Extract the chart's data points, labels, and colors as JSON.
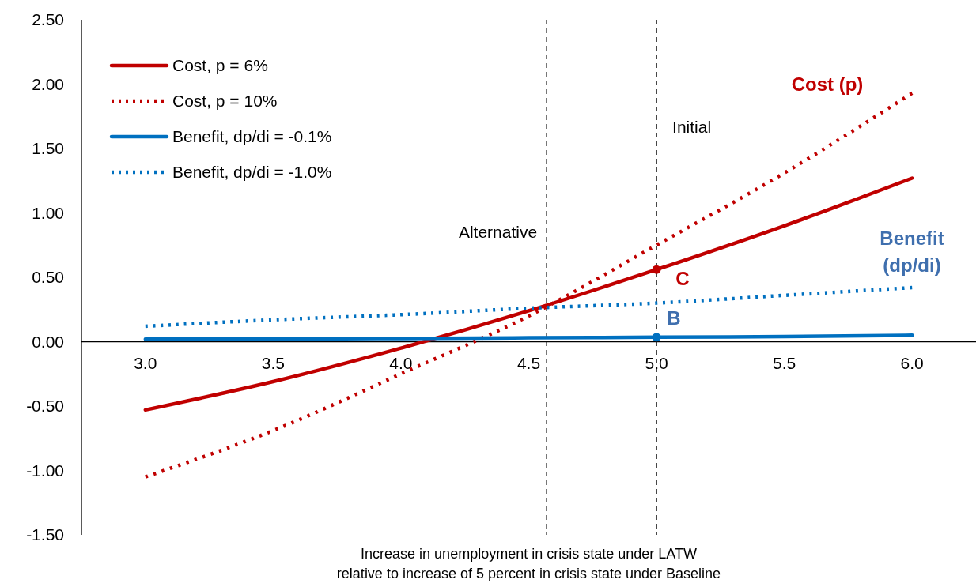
{
  "chart_data": {
    "type": "line",
    "xlabel": "Increase in unemployment in crisis state under LATW\nrelative to increase of 5 percent in crisis state under Baseline",
    "x": [
      3.0,
      3.5,
      4.0,
      4.5,
      5.0,
      5.5,
      6.0
    ],
    "series": [
      {
        "name": "Cost, p = 6%",
        "color": "#c00000",
        "values": [
          -0.53,
          -0.31,
          -0.05,
          0.24,
          0.56,
          0.9,
          1.27
        ],
        "line_style": "solid"
      },
      {
        "name": "Cost, p = 10%",
        "color": "#c00000",
        "values": [
          -1.05,
          -0.69,
          -0.25,
          0.2,
          0.75,
          1.31,
          1.93
        ],
        "line_style": "dotted"
      },
      {
        "name": "Benefit, dp/di = -0.1%",
        "color": "#0070c0",
        "values": [
          0.02,
          0.02,
          0.025,
          0.03,
          0.035,
          0.04,
          0.05
        ],
        "line_style": "solid"
      },
      {
        "name": "Benefit, dp/di = -1.0%",
        "color": "#0070c0",
        "values": [
          0.12,
          0.17,
          0.21,
          0.26,
          0.3,
          0.36,
          0.42
        ],
        "line_style": "dotted"
      },
      {
        "type": "scatter",
        "color": "#c00000",
        "x": [
          5.0
        ],
        "values": [
          0.56
        ],
        "marker": "circle"
      },
      {
        "type": "scatter",
        "color": "#0070c0",
        "x": [
          5.0
        ],
        "values": [
          0.035
        ],
        "marker": "circle"
      }
    ],
    "xlim": [
      2.75,
      6.25
    ],
    "xticks": [
      {
        "value": 3,
        "label": "3.0"
      },
      {
        "value": 3.5,
        "label": "3.5"
      },
      {
        "value": 4,
        "label": "4.0"
      },
      {
        "value": 4.5,
        "label": "4.5"
      },
      {
        "value": 5,
        "label": "5.0"
      },
      {
        "value": 5.5,
        "label": "5.5"
      },
      {
        "value": 6,
        "label": "6.0"
      }
    ],
    "ylim": [
      -1.5,
      2.5
    ],
    "yticks": [
      {
        "value": -1.5,
        "label": "-1.50"
      },
      {
        "value": -1,
        "label": "-1.00"
      },
      {
        "value": -0.5,
        "label": "-0.50"
      },
      {
        "value": 0,
        "label": "0.00"
      },
      {
        "value": 0.5,
        "label": "0.50"
      },
      {
        "value": 1,
        "label": "1.00"
      },
      {
        "value": 1.5,
        "label": "1.50"
      },
      {
        "value": 2,
        "label": "2.00"
      },
      {
        "value": 2.5,
        "label": "2.50"
      }
    ],
    "ref_lines": [
      {
        "axis": "x",
        "value": 4.57,
        "label": "Alternative",
        "color": "#000000",
        "line_style": "dashed"
      },
      {
        "axis": "x",
        "value": 5.0,
        "label": "Initial",
        "color": "#000000",
        "line_style": "dashed"
      }
    ],
    "annotations": [
      "Cost (p)",
      "Benefit\n(dp/di)",
      "C",
      "B"
    ],
    "grid": false,
    "legend": "top left",
    "marker": "none"
  }
}
